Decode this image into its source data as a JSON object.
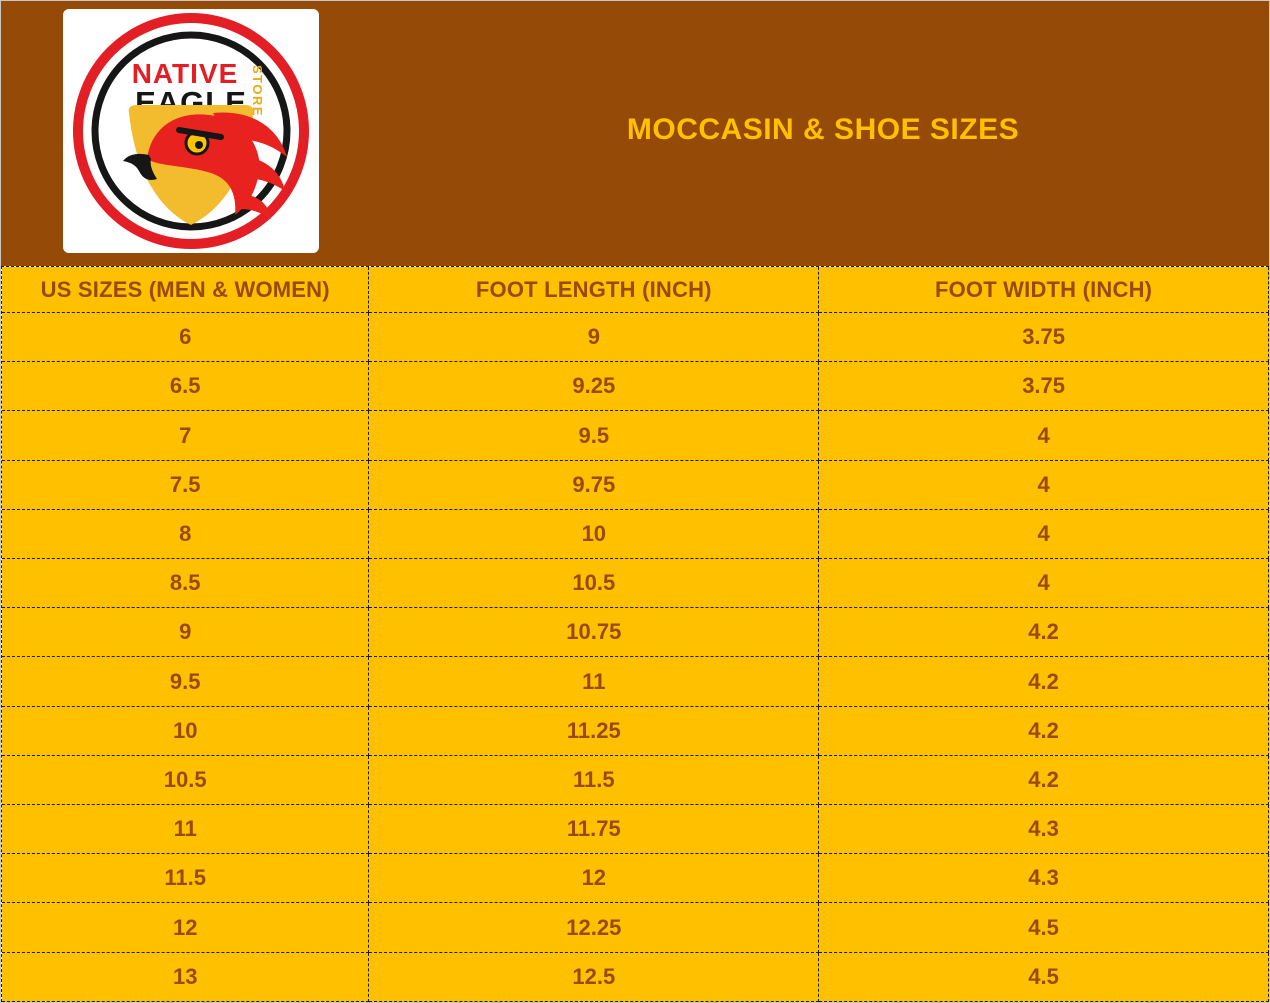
{
  "colors": {
    "banner_brown": "#964A07",
    "table_gold": "#FFC000",
    "table_text_brown": "#9A4A06",
    "title_gold": "#FFC000",
    "border_dash": "#1A1A1A",
    "logo_red": "#E31E24",
    "logo_black": "#161616",
    "logo_gold": "#EFA80F",
    "logo_shield_gold": "#F3BC2E"
  },
  "banner": {
    "title": "MOCCASIN & SHOE SIZES",
    "logo": {
      "line1": "NATIVE",
      "line2": "EAGLE",
      "line3": "STORE"
    }
  },
  "table": {
    "columns": [
      "US SIZES (MEN & WOMEN)",
      "FOOT LENGTH (INCH)",
      "FOOT WIDTH (INCH)"
    ],
    "rows": [
      [
        "6",
        "9",
        "3.75"
      ],
      [
        "6.5",
        "9.25",
        "3.75"
      ],
      [
        "7",
        "9.5",
        "4"
      ],
      [
        "7.5",
        "9.75",
        "4"
      ],
      [
        "8",
        "10",
        "4"
      ],
      [
        "8.5",
        "10.5",
        "4"
      ],
      [
        "9",
        "10.75",
        "4.2"
      ],
      [
        "9.5",
        "11",
        "4.2"
      ],
      [
        "10",
        "11.25",
        "4.2"
      ],
      [
        "10.5",
        "11.5",
        "4.2"
      ],
      [
        "11",
        "11.75",
        "4.3"
      ],
      [
        "11.5",
        "12",
        "4.3"
      ],
      [
        "12",
        "12.25",
        "4.5"
      ],
      [
        "13",
        "12.5",
        "4.5"
      ]
    ]
  }
}
